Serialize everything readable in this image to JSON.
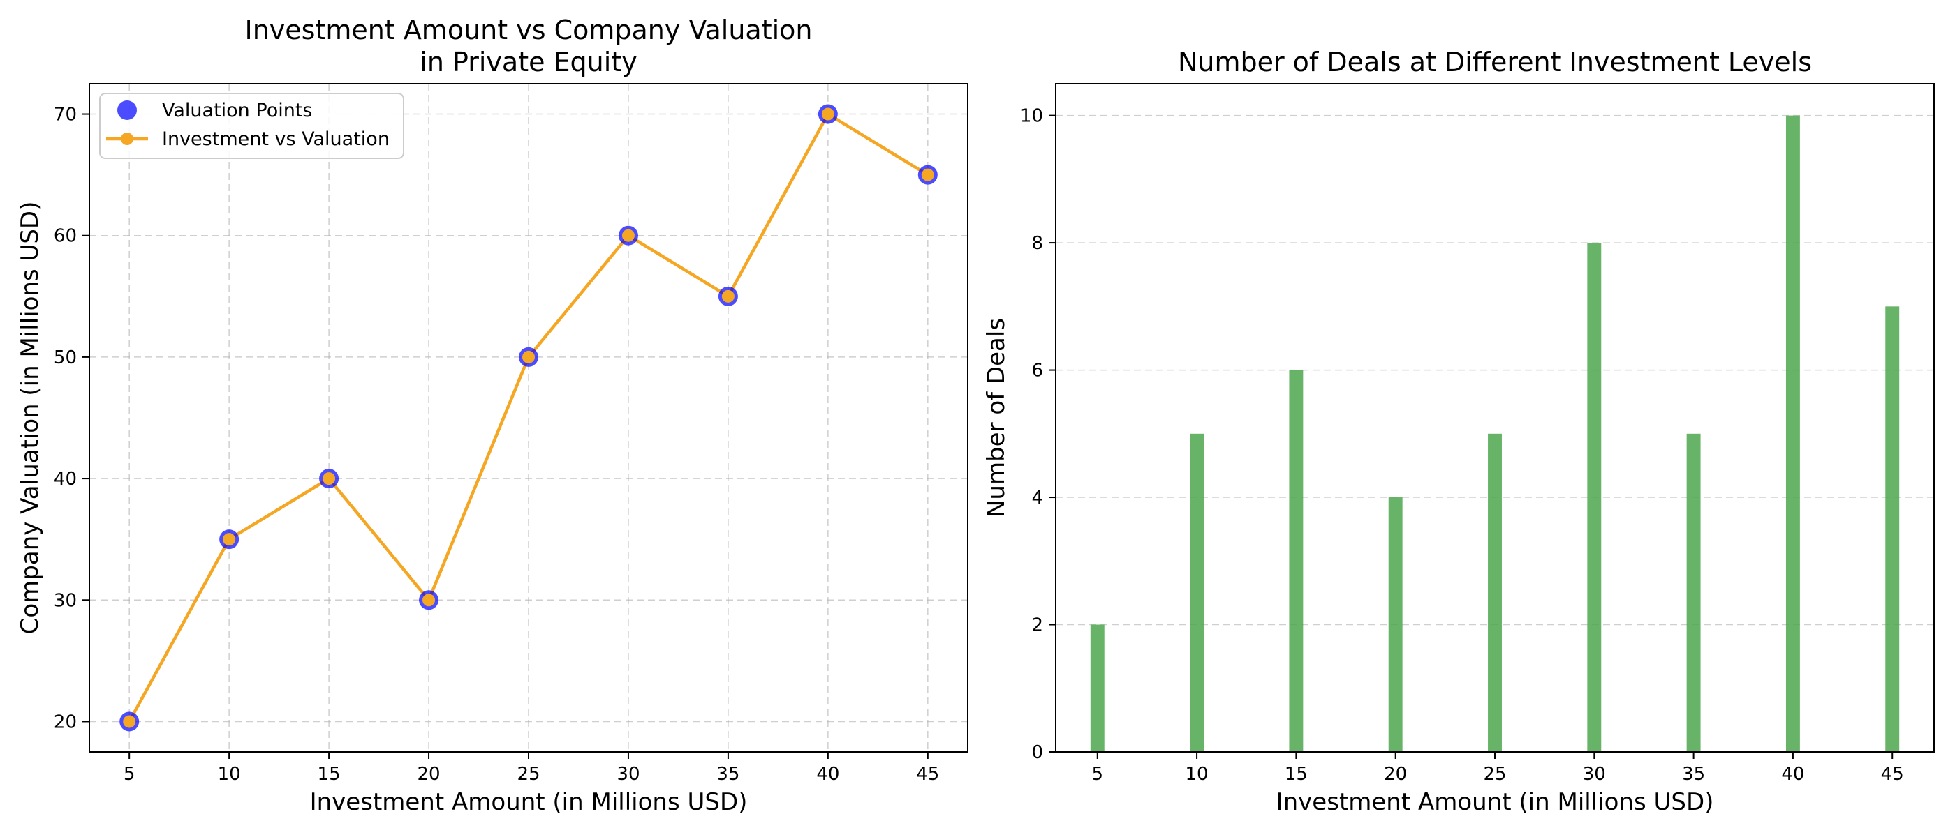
{
  "chart_data": [
    {
      "type": "line",
      "title": "Investment Amount vs Company Valuation\nin Private Equity",
      "xlabel": "Investment Amount (in Millions USD)",
      "ylabel": "Company Valuation (in Millions USD)",
      "x": [
        5,
        10,
        15,
        20,
        25,
        30,
        35,
        40,
        45
      ],
      "xticks": [
        5,
        10,
        15,
        20,
        25,
        30,
        35,
        40,
        45
      ],
      "yticks": [
        20,
        30,
        40,
        50,
        60,
        70
      ],
      "xlim": [
        3,
        47
      ],
      "ylim": [
        17.5,
        72.5
      ],
      "grid": true,
      "legend_position": "upper-left",
      "series": [
        {
          "name": "Valuation Points",
          "kind": "scatter",
          "color": "#0000ff",
          "values": [
            20,
            35,
            40,
            30,
            50,
            60,
            55,
            70,
            65
          ]
        },
        {
          "name": "Investment vs Valuation",
          "kind": "line",
          "color": "#f5a623",
          "values": [
            20,
            35,
            40,
            30,
            50,
            60,
            55,
            70,
            65
          ]
        }
      ]
    },
    {
      "type": "bar",
      "title": "Number of Deals at Different Investment Levels",
      "xlabel": "Investment Amount (in Millions USD)",
      "ylabel": "Number of Deals",
      "categories": [
        5,
        10,
        15,
        20,
        25,
        30,
        35,
        40,
        45
      ],
      "values": [
        2,
        5,
        6,
        4,
        5,
        8,
        5,
        10,
        7
      ],
      "xticks": [
        5,
        10,
        15,
        20,
        25,
        30,
        35,
        40,
        45
      ],
      "yticks": [
        0,
        2,
        4,
        6,
        8,
        10
      ],
      "xlim": [
        2.9,
        47.1
      ],
      "ylim": [
        0,
        10.5
      ],
      "bar_width": 0.7,
      "bar_color": "#4ca64c",
      "grid": true
    }
  ]
}
